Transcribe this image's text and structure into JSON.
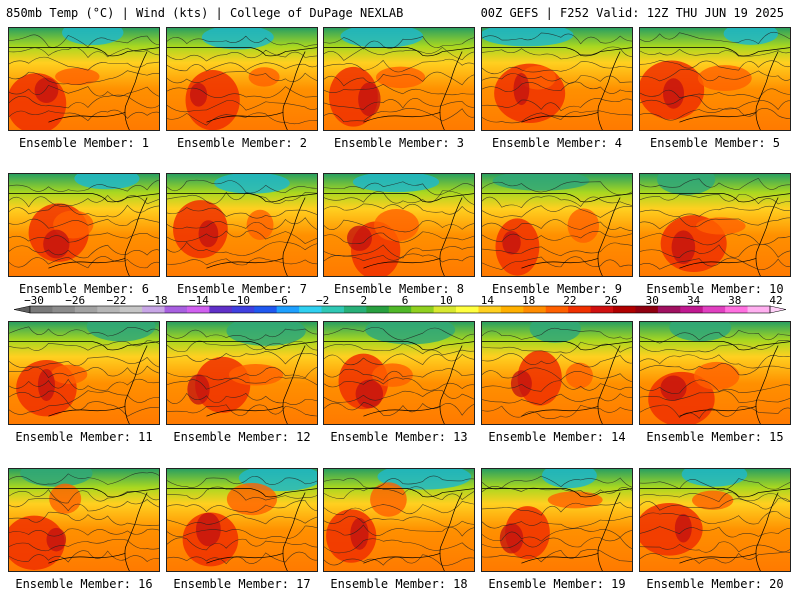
{
  "header": {
    "title_left": "850mb Temp (°C) | Wind (kts) | College of DuPage NEXLAB",
    "title_right": "00Z GEFS | F252 Valid: 12Z THU JUN 19 2025"
  },
  "panels": [
    {
      "label": "Ensemble Member: 1"
    },
    {
      "label": "Ensemble Member: 2"
    },
    {
      "label": "Ensemble Member: 3"
    },
    {
      "label": "Ensemble Member: 4"
    },
    {
      "label": "Ensemble Member: 5"
    },
    {
      "label": "Ensemble Member: 6"
    },
    {
      "label": "Ensemble Member: 7"
    },
    {
      "label": "Ensemble Member: 8"
    },
    {
      "label": "Ensemble Member: 9"
    },
    {
      "label": "Ensemble Member: 10"
    },
    {
      "label": "Ensemble Member: 11"
    },
    {
      "label": "Ensemble Member: 12"
    },
    {
      "label": "Ensemble Member: 13"
    },
    {
      "label": "Ensemble Member: 14"
    },
    {
      "label": "Ensemble Member: 15"
    },
    {
      "label": "Ensemble Member: 16"
    },
    {
      "label": "Ensemble Member: 17"
    },
    {
      "label": "Ensemble Member: 18"
    },
    {
      "label": "Ensemble Member: 19"
    },
    {
      "label": "Ensemble Member: 20"
    }
  ],
  "colorbar": {
    "ticks": [
      "−30",
      "−26",
      "−22",
      "−18",
      "−14",
      "−10",
      "−6",
      "−2",
      "2",
      "6",
      "10",
      "14",
      "18",
      "22",
      "26",
      "30",
      "34",
      "38",
      "42"
    ],
    "colors": [
      "#7a7a7a",
      "#8c8c8c",
      "#a2a2a2",
      "#b6b6b6",
      "#c6c6c6",
      "#c8a6e6",
      "#a860e0",
      "#d060f0",
      "#6030c8",
      "#4040e0",
      "#2058f0",
      "#1ea0ff",
      "#30d0f0",
      "#30c8b4",
      "#28b078",
      "#28a040",
      "#50b828",
      "#90d020",
      "#d8e830",
      "#ffff40",
      "#ffd020",
      "#ffb000",
      "#ff8c00",
      "#ff6000",
      "#f03000",
      "#d01010",
      "#b00000",
      "#900010",
      "#a01060",
      "#c01890",
      "#e040c0",
      "#ff70e0",
      "#ffb0f0"
    ]
  }
}
